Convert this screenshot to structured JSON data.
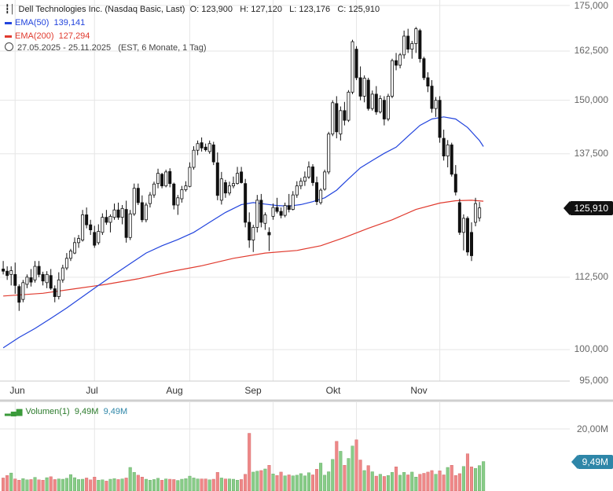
{
  "header": {
    "title": "Dell Technologies Inc. (Nasdaq Basic, Last)",
    "ohlc": "O: 123,900   H: 127,120   L: 123,176   C: 125,910",
    "ema50_label": "EMA(50)",
    "ema50_value": "139,141",
    "ema200_label": "EMA(200)",
    "ema200_value": "127,294",
    "date_range": "27.05.2025 - 25.11.2025",
    "timeframe": "(EST, 6 Monate, 1 Tag)"
  },
  "volume_panel": {
    "label": "Volumen(1)",
    "value1": "9,49M",
    "value2": "9,49M",
    "tick": "20,00M",
    "badge": "9,49M"
  },
  "price_badge": "125,910",
  "colors": {
    "ema50": "#2244dd",
    "ema200": "#e03a2e",
    "candle": "#111111",
    "vol_up": "#88cc88",
    "vol_down": "#ee8888",
    "grid": "#e6e6e6"
  },
  "chart_data": {
    "type": "candlestick",
    "y_ticks": [
      "175,000",
      "162,500",
      "150,000",
      "137,500",
      "112,500",
      "100,000",
      "95,000"
    ],
    "y_tick_values": [
      175000,
      162500,
      150000,
      137500,
      112500,
      100000,
      95000
    ],
    "x_labels": [
      "Jun",
      "Jul",
      "Aug",
      "Sep",
      "Okt",
      "Nov"
    ],
    "x_label_days": [
      3,
      23,
      47,
      68,
      89,
      110
    ],
    "last_close": 125910,
    "ema50_last": 139141,
    "ema200_last": 127294,
    "candles": [
      {
        "o": 114.0,
        "h": 115.5,
        "l": 113.0,
        "c": 113.6
      },
      {
        "o": 113.6,
        "h": 114.5,
        "l": 112.0,
        "c": 112.8
      },
      {
        "o": 113.0,
        "h": 114.5,
        "l": 111.0,
        "c": 113.7
      },
      {
        "o": 113.0,
        "h": 115.2,
        "l": 109.5,
        "c": 111.0
      },
      {
        "o": 110.8,
        "h": 111.2,
        "l": 106.5,
        "c": 108.0
      },
      {
        "o": 108.5,
        "h": 112.0,
        "l": 108.0,
        "c": 111.5
      },
      {
        "o": 111.2,
        "h": 113.0,
        "l": 110.5,
        "c": 112.5
      },
      {
        "o": 112.4,
        "h": 114.0,
        "l": 110.8,
        "c": 111.6
      },
      {
        "o": 112.0,
        "h": 115.5,
        "l": 111.5,
        "c": 114.5
      },
      {
        "o": 114.5,
        "h": 115.5,
        "l": 112.5,
        "c": 113.0
      },
      {
        "o": 113.0,
        "h": 113.5,
        "l": 111.0,
        "c": 111.8
      },
      {
        "o": 111.5,
        "h": 113.6,
        "l": 110.5,
        "c": 113.0
      },
      {
        "o": 112.8,
        "h": 114.0,
        "l": 110.2,
        "c": 110.5
      },
      {
        "o": 110.4,
        "h": 111.0,
        "l": 108.0,
        "c": 109.0
      },
      {
        "o": 109.0,
        "h": 113.4,
        "l": 108.5,
        "c": 112.0
      },
      {
        "o": 112.0,
        "h": 114.8,
        "l": 111.5,
        "c": 114.2
      },
      {
        "o": 114.2,
        "h": 117.0,
        "l": 113.8,
        "c": 116.0
      },
      {
        "o": 116.0,
        "h": 117.8,
        "l": 115.5,
        "c": 117.4
      },
      {
        "o": 117.0,
        "h": 120.0,
        "l": 116.8,
        "c": 119.0
      },
      {
        "o": 119.0,
        "h": 120.5,
        "l": 118.0,
        "c": 119.8
      },
      {
        "o": 119.5,
        "h": 125.5,
        "l": 119.2,
        "c": 124.5
      },
      {
        "o": 124.5,
        "h": 126.0,
        "l": 121.8,
        "c": 122.5
      },
      {
        "o": 122.5,
        "h": 123.5,
        "l": 120.5,
        "c": 121.5
      },
      {
        "o": 121.0,
        "h": 122.3,
        "l": 118.0,
        "c": 118.5
      },
      {
        "o": 119.0,
        "h": 122.6,
        "l": 118.6,
        "c": 121.2
      },
      {
        "o": 121.0,
        "h": 124.8,
        "l": 120.5,
        "c": 124.0
      },
      {
        "o": 124.0,
        "h": 125.5,
        "l": 122.5,
        "c": 123.0
      },
      {
        "o": 123.0,
        "h": 124.6,
        "l": 121.0,
        "c": 124.2
      },
      {
        "o": 124.0,
        "h": 126.8,
        "l": 123.5,
        "c": 125.5
      },
      {
        "o": 125.5,
        "h": 127.0,
        "l": 123.5,
        "c": 124.0
      },
      {
        "o": 124.0,
        "h": 126.5,
        "l": 122.6,
        "c": 125.8
      },
      {
        "o": 125.6,
        "h": 127.4,
        "l": 119.0,
        "c": 120.0
      },
      {
        "o": 120.0,
        "h": 125.5,
        "l": 119.5,
        "c": 124.7
      },
      {
        "o": 124.7,
        "h": 131.0,
        "l": 124.3,
        "c": 130.0
      },
      {
        "o": 130.0,
        "h": 131.0,
        "l": 126.5,
        "c": 127.0
      },
      {
        "o": 127.0,
        "h": 128.5,
        "l": 123.0,
        "c": 123.5
      },
      {
        "o": 123.5,
        "h": 127.0,
        "l": 123.0,
        "c": 126.5
      },
      {
        "o": 126.8,
        "h": 129.2,
        "l": 126.0,
        "c": 128.6
      },
      {
        "o": 128.6,
        "h": 131.4,
        "l": 128.0,
        "c": 130.9
      },
      {
        "o": 131.0,
        "h": 134.2,
        "l": 130.0,
        "c": 133.2
      },
      {
        "o": 133.0,
        "h": 133.3,
        "l": 130.0,
        "c": 130.5
      },
      {
        "o": 130.5,
        "h": 134.0,
        "l": 130.2,
        "c": 133.5
      },
      {
        "o": 133.6,
        "h": 134.3,
        "l": 130.2,
        "c": 131.0
      },
      {
        "o": 130.9,
        "h": 131.2,
        "l": 125.6,
        "c": 126.5
      },
      {
        "o": 126.5,
        "h": 128.6,
        "l": 124.5,
        "c": 128.0
      },
      {
        "o": 127.8,
        "h": 130.5,
        "l": 127.0,
        "c": 129.7
      },
      {
        "o": 129.7,
        "h": 131.5,
        "l": 129.3,
        "c": 130.5
      },
      {
        "o": 130.4,
        "h": 135.6,
        "l": 130.2,
        "c": 134.5
      },
      {
        "o": 134.5,
        "h": 139.2,
        "l": 134.0,
        "c": 138.3
      },
      {
        "o": 138.3,
        "h": 140.5,
        "l": 137.2,
        "c": 139.8
      },
      {
        "o": 140.0,
        "h": 141.2,
        "l": 138.0,
        "c": 138.8
      },
      {
        "o": 139.0,
        "h": 139.8,
        "l": 138.0,
        "c": 138.4
      },
      {
        "o": 138.0,
        "h": 140.5,
        "l": 137.5,
        "c": 139.8
      },
      {
        "o": 139.5,
        "h": 140.2,
        "l": 135.0,
        "c": 135.7
      },
      {
        "o": 135.5,
        "h": 137.8,
        "l": 127.5,
        "c": 128.5
      },
      {
        "o": 127.5,
        "h": 133.5,
        "l": 126.6,
        "c": 132.0
      },
      {
        "o": 131.2,
        "h": 131.8,
        "l": 128.0,
        "c": 129.0
      },
      {
        "o": 129.0,
        "h": 131.4,
        "l": 128.5,
        "c": 130.5
      },
      {
        "o": 130.5,
        "h": 132.5,
        "l": 130.0,
        "c": 131.0
      },
      {
        "o": 131.0,
        "h": 134.6,
        "l": 130.8,
        "c": 133.2
      },
      {
        "o": 133.5,
        "h": 134.6,
        "l": 131.0,
        "c": 131.2
      },
      {
        "o": 131.0,
        "h": 132.0,
        "l": 122.0,
        "c": 123.0
      },
      {
        "o": 123.0,
        "h": 125.0,
        "l": 118.0,
        "c": 119.5
      },
      {
        "o": 119.5,
        "h": 122.5,
        "l": 117.2,
        "c": 122.0
      },
      {
        "o": 122.0,
        "h": 128.6,
        "l": 121.0,
        "c": 127.5
      },
      {
        "o": 127.5,
        "h": 128.8,
        "l": 122.0,
        "c": 123.0
      },
      {
        "o": 122.8,
        "h": 125.0,
        "l": 121.5,
        "c": 124.5
      },
      {
        "o": 121.0,
        "h": 122.0,
        "l": 117.4,
        "c": 120.5
      },
      {
        "o": 124.2,
        "h": 126.8,
        "l": 123.5,
        "c": 126.0
      },
      {
        "o": 126.0,
        "h": 128.0,
        "l": 124.8,
        "c": 125.2
      },
      {
        "o": 125.2,
        "h": 126.0,
        "l": 123.8,
        "c": 124.4
      },
      {
        "o": 124.4,
        "h": 127.0,
        "l": 124.0,
        "c": 126.4
      },
      {
        "o": 126.4,
        "h": 128.8,
        "l": 125.0,
        "c": 125.6
      },
      {
        "o": 125.6,
        "h": 129.4,
        "l": 125.4,
        "c": 128.6
      },
      {
        "o": 128.6,
        "h": 131.5,
        "l": 128.0,
        "c": 130.5
      },
      {
        "o": 130.5,
        "h": 132.2,
        "l": 129.8,
        "c": 131.5
      },
      {
        "o": 131.5,
        "h": 133.6,
        "l": 130.5,
        "c": 132.4
      },
      {
        "o": 132.4,
        "h": 135.8,
        "l": 132.0,
        "c": 134.6
      },
      {
        "o": 134.6,
        "h": 135.2,
        "l": 130.5,
        "c": 131.2
      },
      {
        "o": 131.2,
        "h": 132.5,
        "l": 126.5,
        "c": 127.2
      },
      {
        "o": 127.0,
        "h": 130.0,
        "l": 126.6,
        "c": 129.6
      },
      {
        "o": 129.8,
        "h": 134.0,
        "l": 129.5,
        "c": 133.5
      },
      {
        "o": 133.5,
        "h": 142.5,
        "l": 133.0,
        "c": 142.0
      },
      {
        "o": 142.0,
        "h": 150.0,
        "l": 141.5,
        "c": 149.4
      },
      {
        "o": 149.2,
        "h": 151.0,
        "l": 141.0,
        "c": 142.5
      },
      {
        "o": 142.0,
        "h": 148.5,
        "l": 140.5,
        "c": 147.5
      },
      {
        "o": 147.5,
        "h": 149.6,
        "l": 144.0,
        "c": 145.2
      },
      {
        "o": 145.2,
        "h": 152.5,
        "l": 144.8,
        "c": 152.0
      },
      {
        "o": 152.0,
        "h": 165.5,
        "l": 151.5,
        "c": 165.0
      },
      {
        "o": 163.0,
        "h": 163.8,
        "l": 155.0,
        "c": 155.6
      },
      {
        "o": 155.6,
        "h": 158.5,
        "l": 150.0,
        "c": 151.0
      },
      {
        "o": 151.0,
        "h": 156.2,
        "l": 149.5,
        "c": 155.5
      },
      {
        "o": 155.0,
        "h": 155.6,
        "l": 147.5,
        "c": 148.0
      },
      {
        "o": 148.0,
        "h": 152.4,
        "l": 147.5,
        "c": 151.5
      },
      {
        "o": 151.5,
        "h": 153.5,
        "l": 146.5,
        "c": 147.2
      },
      {
        "o": 147.2,
        "h": 151.2,
        "l": 146.8,
        "c": 150.4
      },
      {
        "o": 150.0,
        "h": 151.0,
        "l": 144.0,
        "c": 145.5
      },
      {
        "o": 145.5,
        "h": 151.6,
        "l": 145.0,
        "c": 151.0
      },
      {
        "o": 151.0,
        "h": 160.5,
        "l": 150.5,
        "c": 160.0
      },
      {
        "o": 160.0,
        "h": 162.0,
        "l": 157.5,
        "c": 158.8
      },
      {
        "o": 158.8,
        "h": 162.0,
        "l": 158.0,
        "c": 161.5
      },
      {
        "o": 161.5,
        "h": 168.0,
        "l": 160.5,
        "c": 166.5
      },
      {
        "o": 166.5,
        "h": 168.5,
        "l": 162.0,
        "c": 163.0
      },
      {
        "o": 163.0,
        "h": 165.2,
        "l": 160.5,
        "c": 164.5
      },
      {
        "o": 164.5,
        "h": 169.0,
        "l": 162.0,
        "c": 168.5
      },
      {
        "o": 168.0,
        "h": 168.5,
        "l": 159.5,
        "c": 160.5
      },
      {
        "o": 160.5,
        "h": 161.0,
        "l": 155.0,
        "c": 155.6
      },
      {
        "o": 155.6,
        "h": 157.0,
        "l": 152.0,
        "c": 153.5
      },
      {
        "o": 153.5,
        "h": 155.0,
        "l": 147.0,
        "c": 148.0
      },
      {
        "o": 148.0,
        "h": 150.8,
        "l": 146.0,
        "c": 150.0
      },
      {
        "o": 150.0,
        "h": 151.0,
        "l": 140.0,
        "c": 141.2
      },
      {
        "o": 141.0,
        "h": 143.0,
        "l": 136.0,
        "c": 137.0
      },
      {
        "o": 137.0,
        "h": 140.6,
        "l": 134.5,
        "c": 139.5
      },
      {
        "o": 139.5,
        "h": 140.0,
        "l": 132.5,
        "c": 133.0
      },
      {
        "o": 133.0,
        "h": 135.0,
        "l": 128.5,
        "c": 129.2
      },
      {
        "o": 127.0,
        "h": 127.8,
        "l": 120.5,
        "c": 121.0
      },
      {
        "o": 121.0,
        "h": 124.6,
        "l": 117.5,
        "c": 123.8
      },
      {
        "o": 123.8,
        "h": 124.2,
        "l": 116.5,
        "c": 117.2
      },
      {
        "o": 121.0,
        "h": 123.0,
        "l": 115.5,
        "c": 116.5
      },
      {
        "o": 123.0,
        "h": 128.0,
        "l": 122.2,
        "c": 126.8
      },
      {
        "o": 123.9,
        "h": 127.12,
        "l": 123.176,
        "c": 125.91
      }
    ],
    "ema50": [
      {
        "d": 0,
        "v": 100.3
      },
      {
        "d": 4,
        "v": 102.0
      },
      {
        "d": 8,
        "v": 103.5
      },
      {
        "d": 12,
        "v": 105.2
      },
      {
        "d": 16,
        "v": 107.0
      },
      {
        "d": 20,
        "v": 109.0
      },
      {
        "d": 24,
        "v": 111.0
      },
      {
        "d": 28,
        "v": 113.0
      },
      {
        "d": 32,
        "v": 115.0
      },
      {
        "d": 36,
        "v": 117.0
      },
      {
        "d": 40,
        "v": 118.4
      },
      {
        "d": 44,
        "v": 119.6
      },
      {
        "d": 48,
        "v": 121.0
      },
      {
        "d": 52,
        "v": 123.0
      },
      {
        "d": 56,
        "v": 125.0
      },
      {
        "d": 60,
        "v": 126.6
      },
      {
        "d": 63,
        "v": 127.0
      },
      {
        "d": 66,
        "v": 126.7
      },
      {
        "d": 69,
        "v": 126.4
      },
      {
        "d": 72,
        "v": 126.3
      },
      {
        "d": 75,
        "v": 126.6
      },
      {
        "d": 78,
        "v": 127.2
      },
      {
        "d": 81,
        "v": 128.0
      },
      {
        "d": 84,
        "v": 129.6
      },
      {
        "d": 87,
        "v": 132.0
      },
      {
        "d": 90,
        "v": 134.4
      },
      {
        "d": 93,
        "v": 136.0
      },
      {
        "d": 96,
        "v": 137.6
      },
      {
        "d": 99,
        "v": 139.0
      },
      {
        "d": 102,
        "v": 141.5
      },
      {
        "d": 105,
        "v": 144.0
      },
      {
        "d": 108,
        "v": 145.5
      },
      {
        "d": 111,
        "v": 146.0
      },
      {
        "d": 114,
        "v": 145.5
      },
      {
        "d": 117,
        "v": 143.5
      },
      {
        "d": 120,
        "v": 140.5
      },
      {
        "d": 121,
        "v": 139.141
      }
    ],
    "ema200": [
      {
        "d": 0,
        "v": 109.1
      },
      {
        "d": 10,
        "v": 109.6
      },
      {
        "d": 18,
        "v": 110.4
      },
      {
        "d": 26,
        "v": 111.2
      },
      {
        "d": 34,
        "v": 112.2
      },
      {
        "d": 42,
        "v": 113.5
      },
      {
        "d": 50,
        "v": 114.6
      },
      {
        "d": 58,
        "v": 116.0
      },
      {
        "d": 66,
        "v": 117.0
      },
      {
        "d": 74,
        "v": 117.5
      },
      {
        "d": 80,
        "v": 118.4
      },
      {
        "d": 86,
        "v": 120.0
      },
      {
        "d": 92,
        "v": 121.8
      },
      {
        "d": 98,
        "v": 123.5
      },
      {
        "d": 104,
        "v": 125.6
      },
      {
        "d": 110,
        "v": 126.9
      },
      {
        "d": 114,
        "v": 127.4
      },
      {
        "d": 118,
        "v": 127.5
      },
      {
        "d": 121,
        "v": 127.294
      }
    ],
    "volume_ticks_m": [
      20
    ],
    "volumes_m": [
      4.2,
      5.0,
      5.8,
      3.9,
      3.5,
      4.0,
      3.6,
      3.7,
      4.4,
      3.6,
      3.5,
      4.3,
      4.6,
      3.7,
      3.9,
      3.8,
      4.1,
      5.3,
      4.3,
      3.7,
      3.8,
      4.2,
      3.6,
      4.5,
      3.5,
      3.6,
      3.2,
      3.8,
      4.0,
      3.7,
      3.9,
      4.2,
      7.6,
      6.0,
      5.1,
      4.5,
      3.8,
      3.5,
      3.7,
      4.1,
      3.5,
      3.9,
      3.8,
      3.7,
      3.4,
      3.8,
      4.0,
      4.8,
      4.2,
      3.9,
      3.9,
      3.9,
      3.6,
      3.8,
      6.0,
      4.2,
      3.9,
      3.9,
      3.8,
      3.5,
      3.7,
      5.4,
      18.6,
      6.1,
      6.4,
      6.6,
      7.1,
      8.3,
      5.5,
      5.0,
      6.1,
      4.9,
      5.2,
      4.9,
      5.1,
      5.6,
      4.9,
      5.9,
      5.2,
      7.0,
      9.0,
      5.1,
      6.2,
      10.2,
      16.0,
      12.8,
      8.3,
      10.5,
      14.5,
      16.5,
      10.0,
      6.6,
      8.2,
      6.2,
      4.8,
      5.4,
      4.7,
      5.0,
      6.0,
      7.8,
      5.1,
      6.0,
      5.2,
      6.1,
      4.5,
      5.4,
      5.7,
      6.1,
      6.6,
      5.4,
      6.5,
      5.2,
      7.6,
      8.3,
      5.0,
      5.6,
      7.9,
      12.0,
      7.8,
      7.3,
      8.2,
      9.49
    ]
  }
}
